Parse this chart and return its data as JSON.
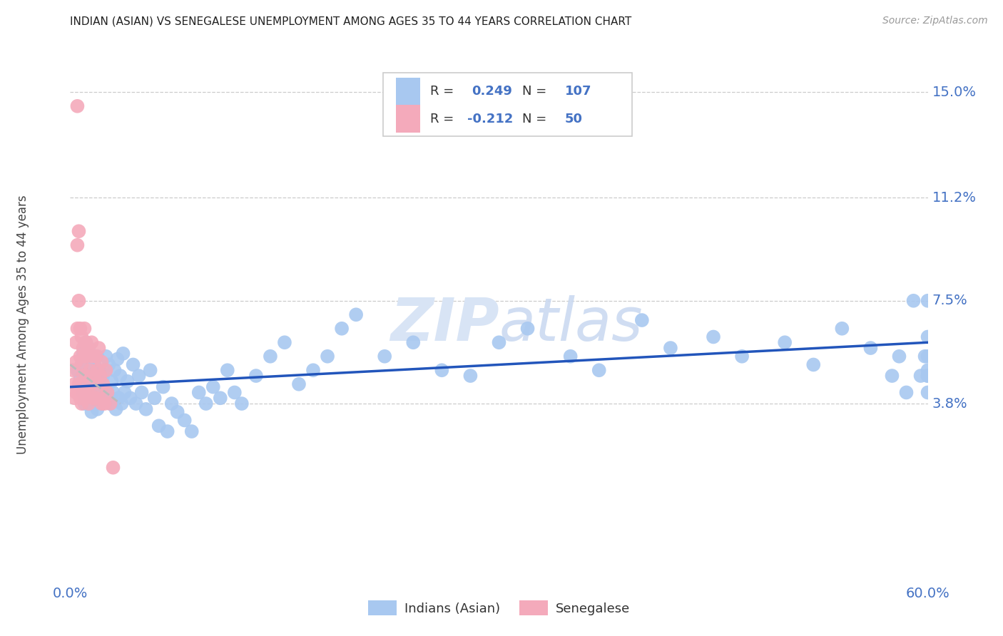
{
  "title": "INDIAN (ASIAN) VS SENEGALESE UNEMPLOYMENT AMONG AGES 35 TO 44 YEARS CORRELATION CHART",
  "source": "Source: ZipAtlas.com",
  "ylabel": "Unemployment Among Ages 35 to 44 years",
  "r_indian": 0.249,
  "n_indian": 107,
  "r_senegalese": -0.212,
  "n_senegalese": 50,
  "color_indian": "#A8C8F0",
  "color_senegalese": "#F4AABB",
  "color_indian_line": "#2255BB",
  "color_senegalese_line": "#BBBBBB",
  "color_axis_labels": "#4472C4",
  "watermark_color": "#D8E4F5",
  "legend_r_color": "#4472C4",
  "legend_text_color": "#333333",
  "xlim": [
    0.0,
    0.6
  ],
  "ylim": [
    -0.025,
    0.158
  ],
  "ytick_vals": [
    0.038,
    0.075,
    0.112,
    0.15
  ],
  "ytick_labels": [
    "3.8%",
    "7.5%",
    "11.2%",
    "15.0%"
  ],
  "xtick_vals": [
    0.0,
    0.6
  ],
  "xtick_labels": [
    "0.0%",
    "60.0%"
  ],
  "indian_scatter_x": [
    0.005,
    0.007,
    0.008,
    0.008,
    0.009,
    0.009,
    0.01,
    0.01,
    0.01,
    0.011,
    0.011,
    0.012,
    0.012,
    0.013,
    0.013,
    0.014,
    0.014,
    0.015,
    0.015,
    0.016,
    0.016,
    0.017,
    0.017,
    0.018,
    0.018,
    0.019,
    0.019,
    0.02,
    0.02,
    0.021,
    0.022,
    0.023,
    0.024,
    0.025,
    0.026,
    0.027,
    0.028,
    0.029,
    0.03,
    0.031,
    0.032,
    0.033,
    0.034,
    0.035,
    0.036,
    0.037,
    0.038,
    0.04,
    0.042,
    0.044,
    0.046,
    0.048,
    0.05,
    0.053,
    0.056,
    0.059,
    0.062,
    0.065,
    0.068,
    0.071,
    0.075,
    0.08,
    0.085,
    0.09,
    0.095,
    0.1,
    0.105,
    0.11,
    0.115,
    0.12,
    0.13,
    0.14,
    0.15,
    0.16,
    0.17,
    0.18,
    0.19,
    0.2,
    0.22,
    0.24,
    0.26,
    0.28,
    0.3,
    0.32,
    0.35,
    0.37,
    0.4,
    0.42,
    0.45,
    0.47,
    0.5,
    0.52,
    0.54,
    0.56,
    0.575,
    0.58,
    0.585,
    0.59,
    0.595,
    0.598,
    0.6,
    0.6,
    0.6,
    0.6,
    0.6,
    0.6,
    0.6
  ],
  "indian_scatter_y": [
    0.05,
    0.047,
    0.044,
    0.052,
    0.042,
    0.056,
    0.038,
    0.048,
    0.055,
    0.043,
    0.06,
    0.04,
    0.053,
    0.038,
    0.058,
    0.042,
    0.05,
    0.035,
    0.046,
    0.04,
    0.054,
    0.038,
    0.052,
    0.042,
    0.048,
    0.036,
    0.055,
    0.04,
    0.05,
    0.044,
    0.038,
    0.048,
    0.042,
    0.055,
    0.04,
    0.052,
    0.038,
    0.046,
    0.042,
    0.05,
    0.036,
    0.054,
    0.04,
    0.048,
    0.038,
    0.056,
    0.042,
    0.046,
    0.04,
    0.052,
    0.038,
    0.048,
    0.042,
    0.036,
    0.05,
    0.04,
    0.03,
    0.044,
    0.028,
    0.038,
    0.035,
    0.032,
    0.028,
    0.042,
    0.038,
    0.044,
    0.04,
    0.05,
    0.042,
    0.038,
    0.048,
    0.055,
    0.06,
    0.045,
    0.05,
    0.055,
    0.065,
    0.07,
    0.055,
    0.06,
    0.05,
    0.048,
    0.06,
    0.065,
    0.055,
    0.05,
    0.068,
    0.058,
    0.062,
    0.055,
    0.06,
    0.052,
    0.065,
    0.058,
    0.048,
    0.055,
    0.042,
    0.075,
    0.048,
    0.055,
    0.042,
    0.048,
    0.062,
    0.05,
    0.055,
    0.048,
    0.075
  ],
  "senegalese_scatter_x": [
    0.002,
    0.003,
    0.003,
    0.004,
    0.004,
    0.004,
    0.005,
    0.005,
    0.005,
    0.005,
    0.006,
    0.006,
    0.006,
    0.007,
    0.007,
    0.007,
    0.008,
    0.008,
    0.008,
    0.009,
    0.009,
    0.01,
    0.01,
    0.01,
    0.011,
    0.011,
    0.012,
    0.012,
    0.013,
    0.013,
    0.014,
    0.015,
    0.015,
    0.016,
    0.016,
    0.017,
    0.018,
    0.018,
    0.019,
    0.02,
    0.02,
    0.021,
    0.022,
    0.022,
    0.023,
    0.024,
    0.025,
    0.026,
    0.028,
    0.03
  ],
  "senegalese_scatter_y": [
    0.05,
    0.045,
    0.04,
    0.053,
    0.042,
    0.06,
    0.145,
    0.095,
    0.065,
    0.042,
    0.1,
    0.075,
    0.045,
    0.065,
    0.055,
    0.04,
    0.062,
    0.052,
    0.038,
    0.058,
    0.048,
    0.065,
    0.055,
    0.042,
    0.06,
    0.048,
    0.058,
    0.042,
    0.055,
    0.038,
    0.05,
    0.06,
    0.045,
    0.055,
    0.04,
    0.048,
    0.055,
    0.04,
    0.05,
    0.058,
    0.042,
    0.048,
    0.053,
    0.038,
    0.045,
    0.038,
    0.05,
    0.042,
    0.038,
    0.015
  ],
  "indian_line_x": [
    0.0,
    0.6
  ],
  "indian_line_y": [
    0.044,
    0.06
  ],
  "senegalese_line_x": [
    0.0,
    0.035
  ],
  "senegalese_line_y": [
    0.052,
    0.038
  ]
}
